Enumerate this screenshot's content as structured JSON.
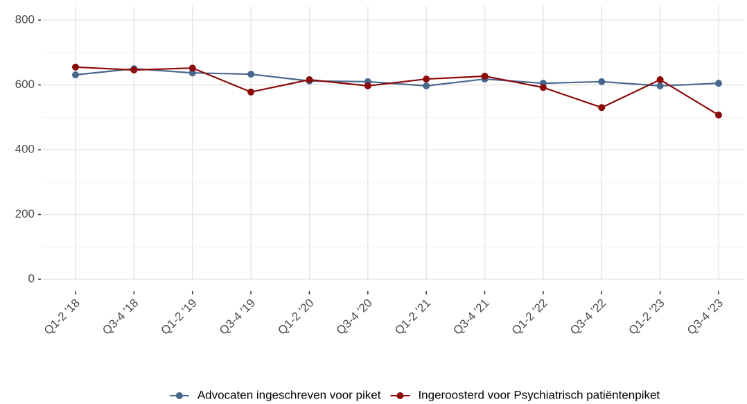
{
  "chart_data": {
    "type": "line",
    "categories": [
      "Q1-2 '18",
      "Q3-4 '18",
      "Q1-2 '19",
      "Q3-4 '19",
      "Q1-2 '20",
      "Q3-4 '20",
      "Q1-2 '21",
      "Q3-4 '21",
      "Q1-2 '22",
      "Q3-4 '22",
      "Q1-2 '23",
      "Q3-4 '23"
    ],
    "series": [
      {
        "name": "Advocaten ingeschreven voor piket",
        "color": "#48678d",
        "values": [
          631,
          650,
          637,
          633,
          612,
          610,
          597,
          618,
          605,
          610,
          597,
          605
        ]
      },
      {
        "name": "Ingeroosterd voor Psychiatrisch patiëntenpiket",
        "color": "#8b0a0a",
        "values": [
          655,
          646,
          652,
          578,
          616,
          597,
          618,
          627,
          592,
          530,
          616,
          507
        ]
      }
    ],
    "ylim": [
      0,
      800
    ],
    "yticks": [
      0,
      200,
      400,
      600,
      800
    ],
    "grid": true,
    "legend": "bottom"
  }
}
